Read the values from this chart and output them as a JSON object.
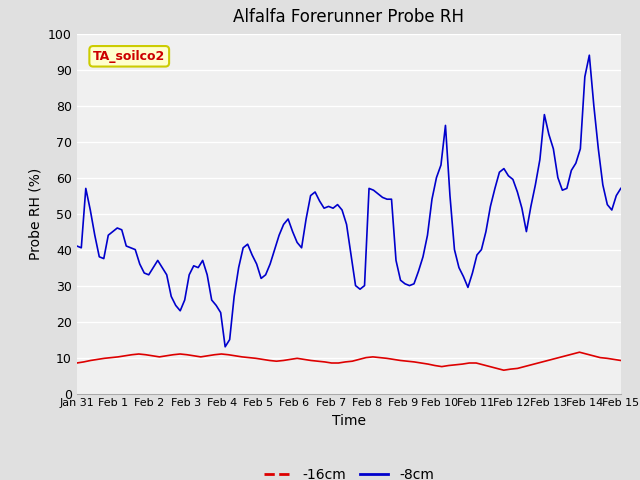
{
  "title": "Alfalfa Forerunner Probe RH",
  "xlabel": "Time",
  "ylabel": "Probe RH (%)",
  "ylim": [
    0,
    100
  ],
  "yticks": [
    0,
    10,
    20,
    30,
    40,
    50,
    60,
    70,
    80,
    90,
    100
  ],
  "xlabels": [
    "Jan 31",
    "Feb 1",
    "Feb 2",
    "Feb 3",
    "Feb 4",
    "Feb 5",
    "Feb 6",
    "Feb 7",
    "Feb 8",
    "Feb 9",
    "Feb 10",
    "Feb 11",
    "Feb 12",
    "Feb 13",
    "Feb 14",
    "Feb 15"
  ],
  "annotation_text": "TA_soilco2",
  "annotation_color": "#cc0000",
  "annotation_bg": "#ffffcc",
  "annotation_border": "#cccc00",
  "fig_bg_color": "#e0e0e0",
  "plot_bg": "#f0f0f0",
  "line_red_color": "#dd0000",
  "line_blue_color": "#0000cc",
  "legend_red_label": "-16cm",
  "legend_blue_label": "-8cm",
  "red_data": [
    8.5,
    8.8,
    9.2,
    9.5,
    9.8,
    10.0,
    10.2,
    10.5,
    10.8,
    11.0,
    10.8,
    10.5,
    10.2,
    10.5,
    10.8,
    11.0,
    10.8,
    10.5,
    10.2,
    10.5,
    10.8,
    11.0,
    10.8,
    10.5,
    10.2,
    10.0,
    9.8,
    9.5,
    9.2,
    9.0,
    9.2,
    9.5,
    9.8,
    9.5,
    9.2,
    9.0,
    8.8,
    8.5,
    8.5,
    8.8,
    9.0,
    9.5,
    10.0,
    10.2,
    10.0,
    9.8,
    9.5,
    9.2,
    9.0,
    8.8,
    8.5,
    8.2,
    7.8,
    7.5,
    7.8,
    8.0,
    8.2,
    8.5,
    8.5,
    8.0,
    7.5,
    7.0,
    6.5,
    6.8,
    7.0,
    7.5,
    8.0,
    8.5,
    9.0,
    9.5,
    10.0,
    10.5,
    11.0,
    11.5,
    11.0,
    10.5,
    10.0,
    9.8,
    9.5,
    9.2
  ],
  "blue_data": [
    41.0,
    40.5,
    57.0,
    51.0,
    44.0,
    38.0,
    37.5,
    44.0,
    45.0,
    46.0,
    45.5,
    41.0,
    40.5,
    40.0,
    36.0,
    33.5,
    33.0,
    35.0,
    37.0,
    35.0,
    33.0,
    27.0,
    24.5,
    23.0,
    26.0,
    33.0,
    35.5,
    35.0,
    37.0,
    33.0,
    26.0,
    24.5,
    22.5,
    13.0,
    15.0,
    27.0,
    35.0,
    40.5,
    41.5,
    38.5,
    36.0,
    32.0,
    33.0,
    36.0,
    40.0,
    44.0,
    47.0,
    48.5,
    45.0,
    42.0,
    40.5,
    48.5,
    55.0,
    56.0,
    53.5,
    51.5,
    52.0,
    51.5,
    52.5,
    51.0,
    47.0,
    38.5,
    30.0,
    29.0,
    30.0,
    57.0,
    56.5,
    55.5,
    54.5,
    54.0,
    54.0,
    37.0,
    31.5,
    30.5,
    30.0,
    30.5,
    34.0,
    38.0,
    44.0,
    54.0,
    60.0,
    63.5,
    74.5,
    55.0,
    40.0,
    35.0,
    32.5,
    29.5,
    33.5,
    38.5,
    40.0,
    45.0,
    52.0,
    57.0,
    61.5,
    62.5,
    60.5,
    59.5,
    56.0,
    51.5,
    45.0,
    52.0,
    58.0,
    65.0,
    77.5,
    72.0,
    68.0,
    60.0,
    56.5,
    57.0,
    62.0,
    64.0,
    68.0,
    88.0,
    94.0,
    80.0,
    68.0,
    58.0,
    52.5,
    51.0,
    55.0,
    57.0
  ]
}
